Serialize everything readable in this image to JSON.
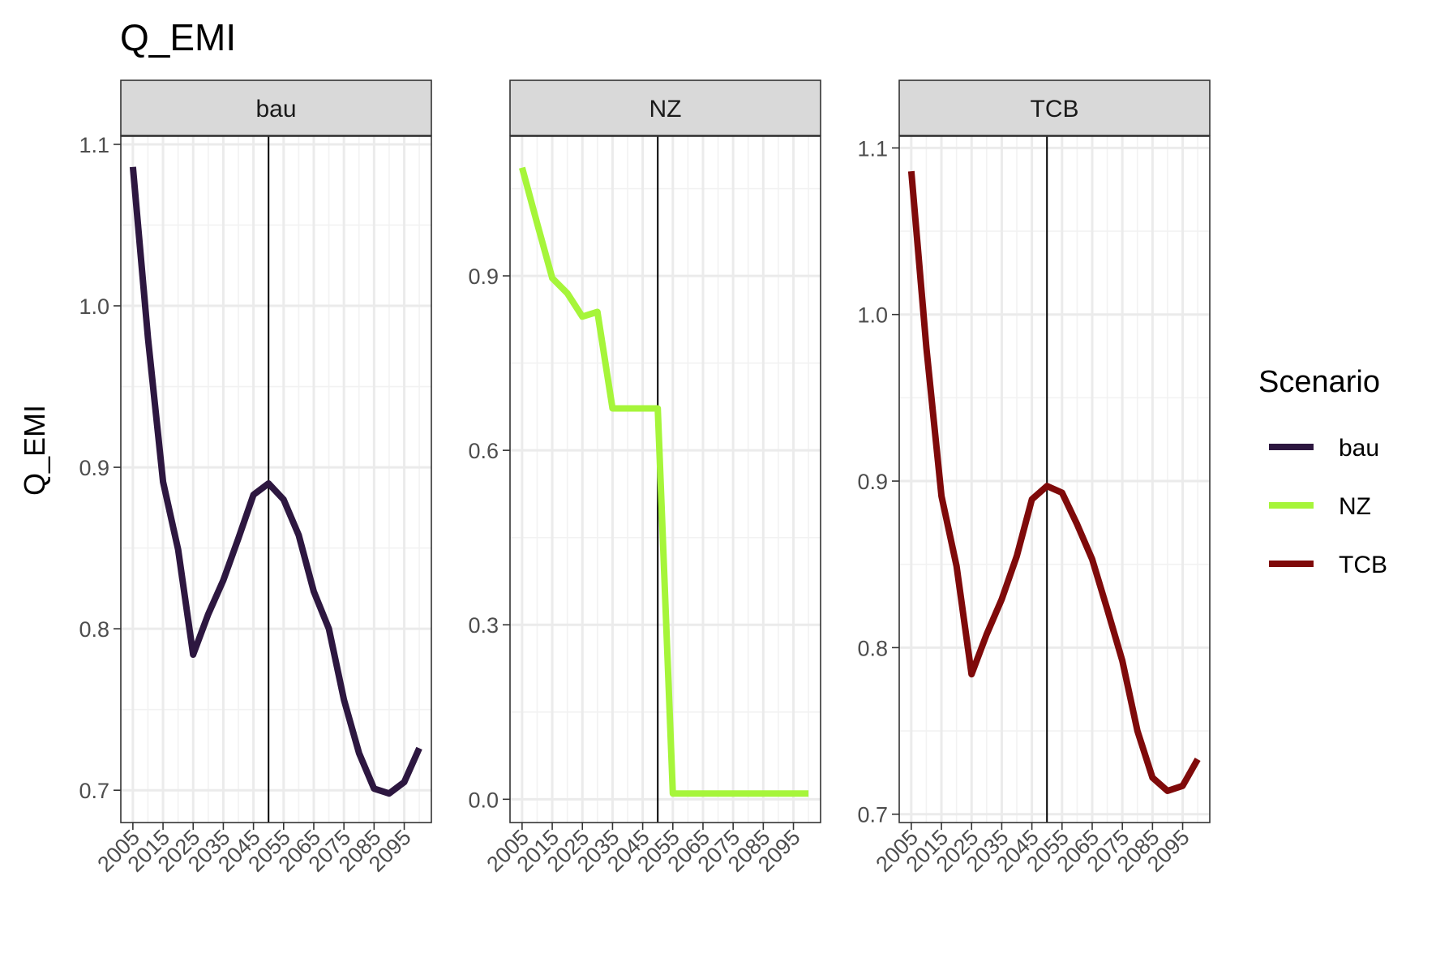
{
  "chart_data": {
    "type": "line",
    "title": "Q_EMI",
    "xlabel": "",
    "ylabel": "Q_EMI",
    "x_tick_labels": [
      "2005",
      "2015",
      "2025",
      "2035",
      "2045",
      "2055",
      "2065",
      "2075",
      "2085",
      "2095"
    ],
    "reference_line_x": 2050,
    "grid": true,
    "legend": {
      "title": "Scenario",
      "position": "right",
      "entries": [
        {
          "name": "bau",
          "color": "#2d1740"
        },
        {
          "name": "NZ",
          "color": "#a6f53a"
        },
        {
          "name": "TCB",
          "color": "#7f0a0a"
        }
      ]
    },
    "panels": [
      {
        "strip": "bau",
        "color": "#2d1740",
        "ylim": [
          0.68,
          1.105
        ],
        "y_ticks": [
          0.7,
          0.8,
          0.9,
          1.0,
          1.1
        ],
        "y_tick_labels": [
          "0.7",
          "0.8",
          "0.9",
          "1.0",
          "1.1"
        ],
        "x": [
          2005,
          2010,
          2015,
          2020,
          2025,
          2030,
          2035,
          2040,
          2045,
          2050,
          2055,
          2060,
          2065,
          2070,
          2075,
          2080,
          2085,
          2090,
          2095,
          2100
        ],
        "values": [
          1.086,
          0.98,
          0.891,
          0.849,
          0.784,
          0.809,
          0.83,
          0.856,
          0.883,
          0.89,
          0.88,
          0.858,
          0.823,
          0.8,
          0.756,
          0.723,
          0.701,
          0.698,
          0.705,
          0.726
        ]
      },
      {
        "strip": "NZ",
        "color": "#a6f53a",
        "ylim": [
          -0.04,
          1.14
        ],
        "y_ticks": [
          0.0,
          0.3,
          0.6,
          0.9
        ],
        "y_tick_labels": [
          "0.0",
          "0.3",
          "0.6",
          "0.9"
        ],
        "x": [
          2005,
          2010,
          2015,
          2020,
          2025,
          2030,
          2035,
          2040,
          2045,
          2050,
          2055,
          2060,
          2065,
          2070,
          2075,
          2080,
          2085,
          2090,
          2095,
          2100
        ],
        "values": [
          1.086,
          0.99,
          0.896,
          0.87,
          0.83,
          0.838,
          0.672,
          0.672,
          0.672,
          0.672,
          0.01,
          0.01,
          0.01,
          0.01,
          0.01,
          0.01,
          0.01,
          0.01,
          0.01,
          0.01
        ]
      },
      {
        "strip": "TCB",
        "color": "#7f0a0a",
        "ylim": [
          0.695,
          1.107
        ],
        "y_ticks": [
          0.7,
          0.8,
          0.9,
          1.0,
          1.1
        ],
        "y_tick_labels": [
          "0.7",
          "0.8",
          "0.9",
          "1.0",
          "1.1"
        ],
        "x": [
          2005,
          2010,
          2015,
          2020,
          2025,
          2030,
          2035,
          2040,
          2045,
          2050,
          2055,
          2060,
          2065,
          2070,
          2075,
          2080,
          2085,
          2090,
          2095,
          2100
        ],
        "values": [
          1.086,
          0.98,
          0.891,
          0.849,
          0.784,
          0.808,
          0.829,
          0.855,
          0.889,
          0.897,
          0.893,
          0.874,
          0.853,
          0.823,
          0.792,
          0.75,
          0.722,
          0.714,
          0.717,
          0.733
        ]
      }
    ]
  }
}
